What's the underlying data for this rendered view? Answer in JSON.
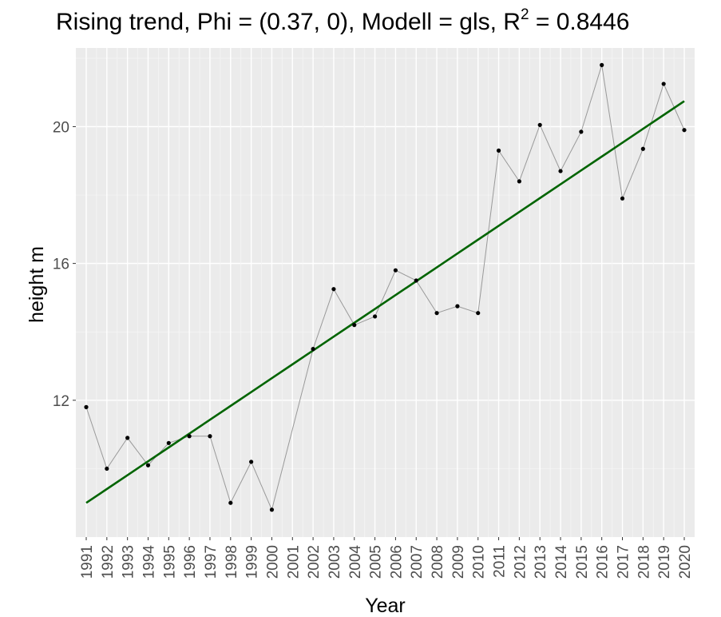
{
  "chart_data": {
    "type": "line",
    "title_main": "Rising trend, Phi = (0.37, 0), Modell = gls, R",
    "title_sup": "2",
    "title_tail": " = 0.8446",
    "xlabel": "Year",
    "ylabel": "height m",
    "x": [
      1991,
      1992,
      1993,
      1994,
      1995,
      1996,
      1997,
      1998,
      1999,
      2000,
      2001,
      2002,
      2003,
      2004,
      2005,
      2006,
      2007,
      2008,
      2009,
      2010,
      2011,
      2012,
      2013,
      2014,
      2015,
      2016,
      2017,
      2018,
      2019,
      2020
    ],
    "y_ticks": [
      12,
      16,
      20
    ],
    "ylim": [
      8.0,
      22.3
    ],
    "series": [
      {
        "role": "observed",
        "y": [
          11.8,
          10.0,
          10.9,
          10.1,
          10.75,
          10.95,
          10.95,
          9.0,
          10.2,
          8.8,
          null,
          13.5,
          15.25,
          14.2,
          14.45,
          15.8,
          15.5,
          14.55,
          14.75,
          14.55,
          19.3,
          18.4,
          20.05,
          18.7,
          19.85,
          21.8,
          17.9,
          19.35,
          21.25,
          19.9
        ],
        "color": "#999999"
      },
      {
        "role": "fitted",
        "y": [
          9.0,
          9.405,
          9.81,
          10.215,
          10.62,
          11.025,
          11.43,
          11.835,
          12.24,
          12.645,
          13.05,
          13.455,
          13.86,
          14.265,
          14.67,
          15.075,
          15.48,
          15.885,
          16.29,
          16.695,
          17.1,
          17.505,
          17.91,
          18.315,
          18.72,
          19.125,
          19.53,
          19.935,
          20.34,
          20.745
        ],
        "color": "#006400"
      }
    ]
  }
}
